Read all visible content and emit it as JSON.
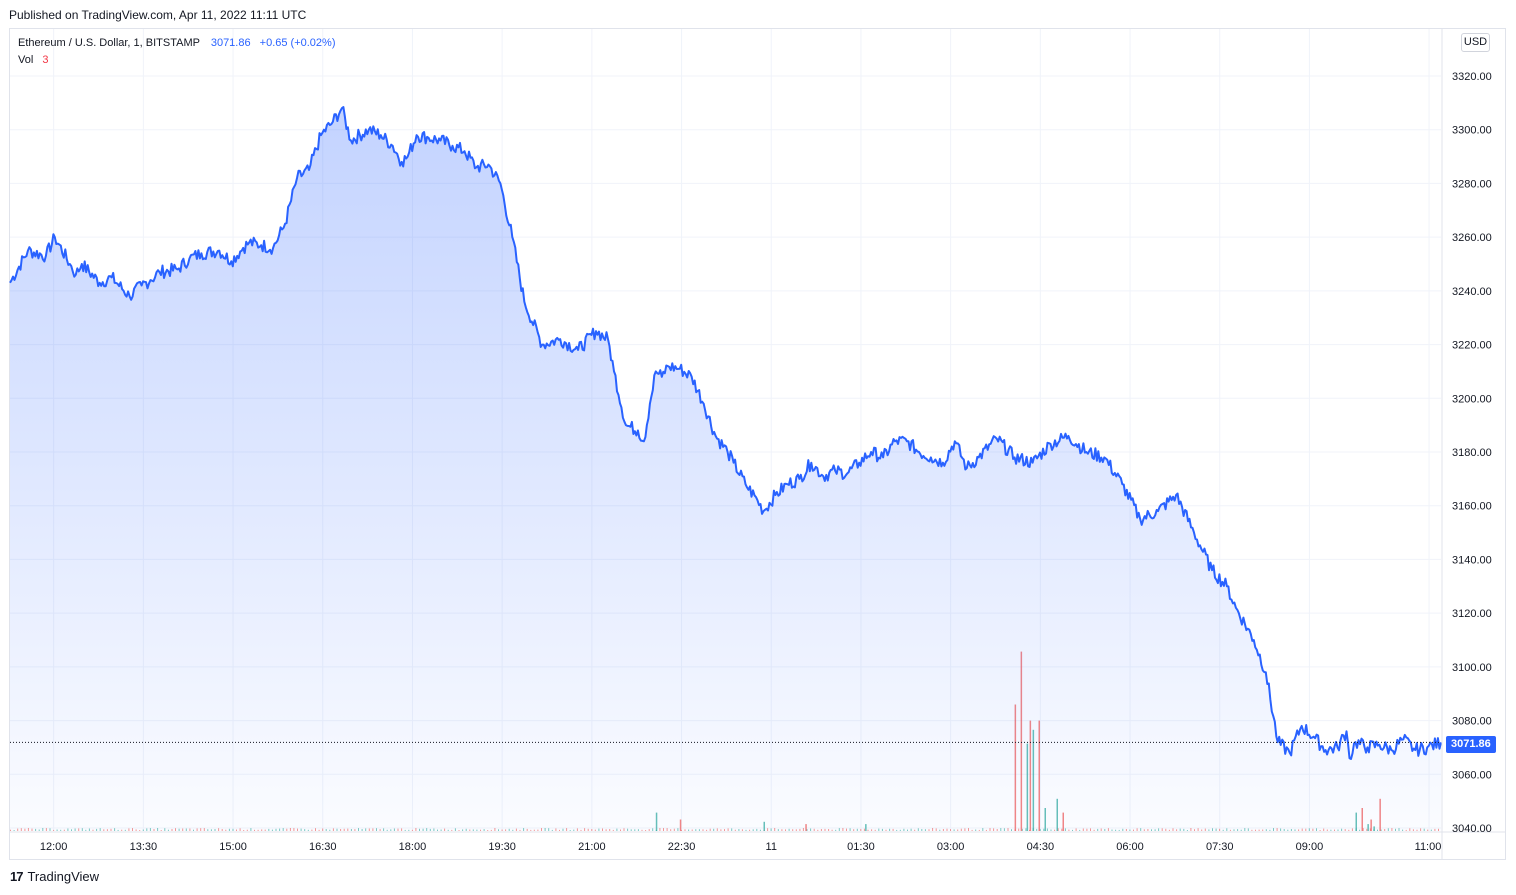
{
  "header": {
    "published": "Published on TradingView.com, Apr 11, 2022 11:11 UTC"
  },
  "legend": {
    "symbol": "Ethereum / U.S. Dollar, 1, BITSTAMP",
    "last_price": "3071.86",
    "change": "+0.65 (+0.02%)",
    "vol_label": "Vol",
    "vol_value": "3"
  },
  "currency_button": "USD",
  "last_price_tag": "3071.86",
  "footer": {
    "brand": "TradingView",
    "logo_glyph": "17"
  },
  "colors": {
    "line": "#2962ff",
    "vol_up": "#26a69a",
    "vol_down": "#ef5350",
    "grid": "#f0f3fa"
  },
  "chart_data": {
    "type": "area",
    "xlabel": "",
    "ylabel": "",
    "ylim": [
      3040,
      3325
    ],
    "y_ticks": [
      "3320.00",
      "3300.00",
      "3280.00",
      "3260.00",
      "3240.00",
      "3220.00",
      "3200.00",
      "3180.00",
      "3160.00",
      "3140.00",
      "3120.00",
      "3100.00",
      "3080.00",
      "3060.00",
      "3040.00"
    ],
    "x_tick_labels": [
      "12:00",
      "13:30",
      "15:00",
      "16:30",
      "18:00",
      "19:30",
      "21:00",
      "22:30",
      "11",
      "01:30",
      "03:00",
      "04:30",
      "06:00",
      "07:30",
      "09:00",
      "11:00"
    ],
    "x_tick_hours": [
      0.73,
      2.23,
      3.73,
      5.23,
      6.73,
      8.23,
      9.73,
      11.23,
      12.73,
      14.23,
      15.73,
      17.23,
      18.73,
      20.23,
      21.73,
      23.73
    ],
    "x_range_hours": [
      0,
      23.93
    ],
    "x_origin": "2022-04-10 11:16 UTC",
    "series": [
      {
        "hours": [
          0,
          0.3,
          0.6,
          0.75,
          1.0,
          1.1,
          1.2,
          1.5,
          1.7,
          2.0,
          2.2,
          2.35,
          2.5,
          2.8,
          3.0,
          3.2,
          3.5,
          3.7,
          3.9,
          4.0,
          4.2,
          4.4,
          4.6,
          4.8,
          5.0,
          5.2,
          5.4,
          5.55,
          5.7,
          6.0,
          6.2,
          6.4,
          6.55,
          6.65,
          6.8,
          7.0,
          7.2,
          7.4,
          7.6,
          7.8,
          8.0,
          8.2,
          8.4,
          8.6,
          8.9,
          9.2,
          9.5,
          9.8,
          10.0,
          10.1,
          10.3,
          10.5,
          10.6,
          10.7,
          10.8,
          10.9,
          11.0,
          11.2,
          11.4,
          11.6,
          11.8,
          12.0,
          12.1,
          12.3,
          12.5,
          12.6,
          12.8,
          13.0,
          13.2,
          13.4,
          13.6,
          13.8,
          14.0,
          14.2,
          14.4,
          14.6,
          14.8,
          15.0,
          15.2,
          15.4,
          15.6,
          15.8,
          16.0,
          16.2,
          16.5,
          16.8,
          17.1,
          17.4,
          17.7,
          18.0,
          18.3,
          18.6,
          18.9,
          19.2,
          19.5,
          19.8,
          20.1,
          20.35,
          20.5,
          20.8,
          21.0,
          21.2,
          21.4,
          21.6,
          21.8,
          22.0,
          22.2,
          22.35,
          22.4,
          22.5,
          22.7,
          22.9,
          23.1,
          23.3,
          23.5,
          23.7,
          23.93
        ],
        "values": [
          3243,
          3255,
          3253,
          3260,
          3250,
          3246,
          3250,
          3243,
          3245,
          3238,
          3242,
          3244,
          3247,
          3248,
          3252,
          3254,
          3255,
          3251,
          3256,
          3258,
          3257,
          3256,
          3265,
          3282,
          3285,
          3298,
          3303,
          3308,
          3296,
          3300,
          3298,
          3294,
          3288,
          3290,
          3298,
          3297,
          3296,
          3294,
          3292,
          3286,
          3287,
          3280,
          3260,
          3236,
          3220,
          3222,
          3218,
          3225,
          3222,
          3210,
          3190,
          3188,
          3184,
          3198,
          3210,
          3208,
          3212,
          3211,
          3208,
          3198,
          3186,
          3180,
          3176,
          3168,
          3162,
          3158,
          3164,
          3168,
          3170,
          3176,
          3171,
          3173,
          3172,
          3176,
          3180,
          3178,
          3184,
          3184,
          3180,
          3178,
          3176,
          3184,
          3174,
          3178,
          3185,
          3178,
          3176,
          3183,
          3186,
          3180,
          3178,
          3168,
          3155,
          3158,
          3164,
          3150,
          3136,
          3130,
          3122,
          3110,
          3098,
          3072,
          3068,
          3078,
          3074,
          3069,
          3070,
          3076,
          3066,
          3072,
          3070,
          3071,
          3069,
          3073,
          3069,
          3070,
          3071.86
        ]
      }
    ],
    "volume": {
      "hours": [
        10.8,
        11.2,
        12.6,
        13.3,
        14.3,
        16.8,
        16.9,
        17.0,
        17.05,
        17.1,
        17.2,
        17.3,
        17.5,
        17.6,
        22.5,
        22.6,
        22.7,
        22.75,
        22.8,
        22.9
      ],
      "values": [
        8,
        5,
        4,
        3,
        3,
        55,
        78,
        38,
        48,
        44,
        48,
        10,
        14,
        8,
        8,
        10,
        3,
        5,
        2,
        14
      ],
      "direction": [
        "up",
        "down",
        "up",
        "down",
        "up",
        "down",
        "down",
        "up",
        "down",
        "up",
        "down",
        "up",
        "up",
        "down",
        "up",
        "down",
        "up",
        "down",
        "up",
        "down"
      ]
    }
  }
}
